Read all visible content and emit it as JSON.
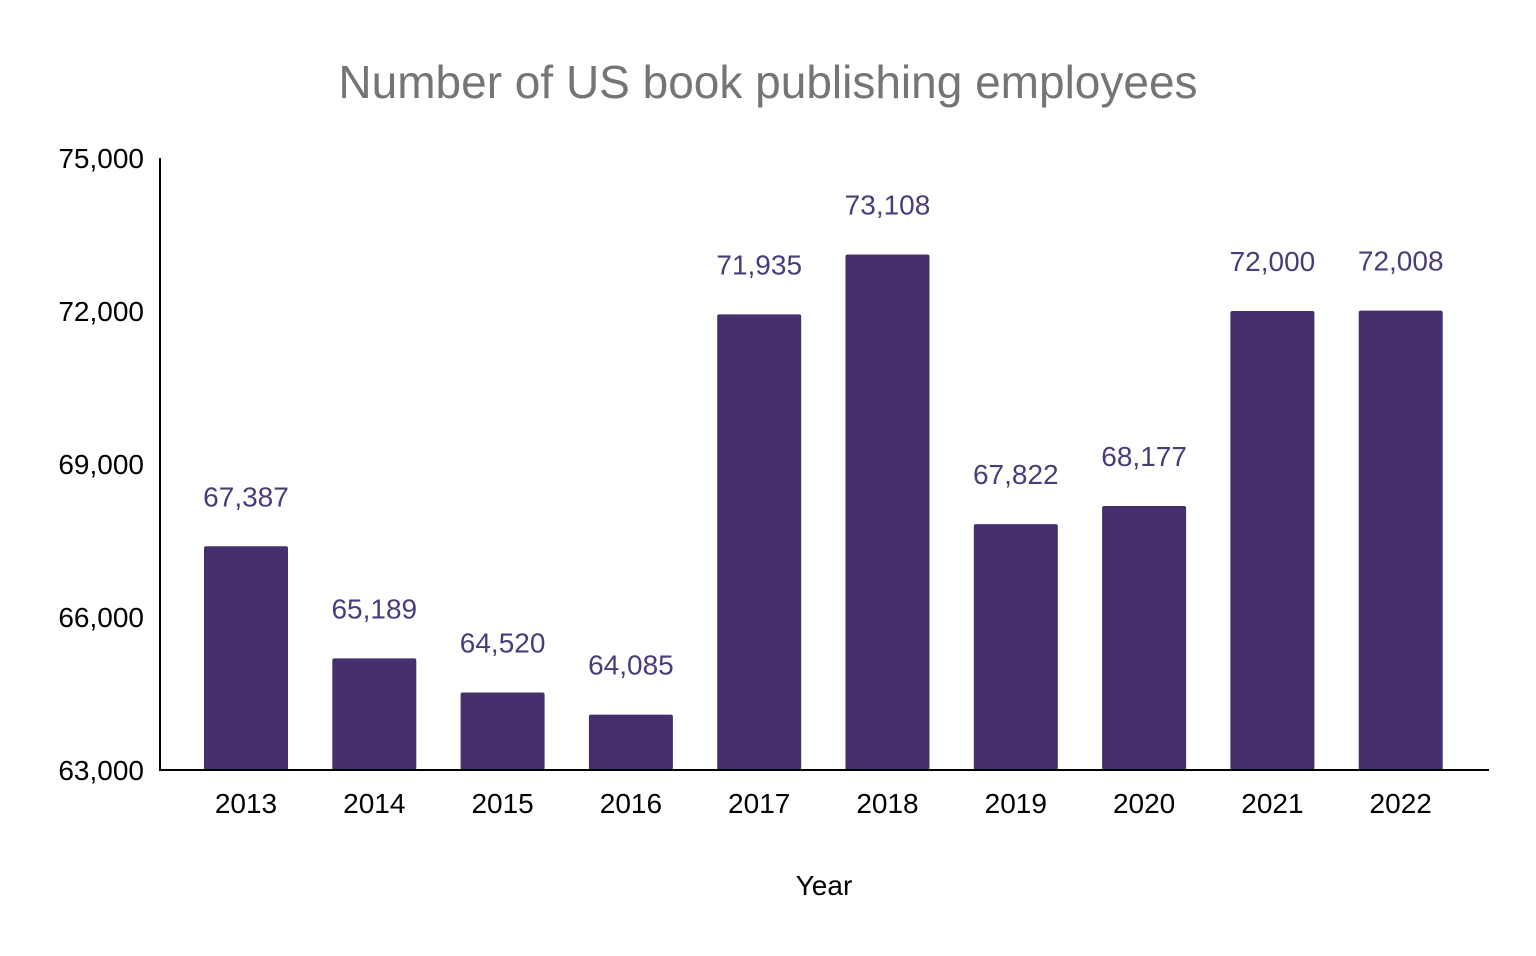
{
  "chart_data": {
    "type": "bar",
    "title": "Number of US book publishing employees",
    "xlabel": "Year",
    "ylabel": "",
    "categories": [
      "2013",
      "2014",
      "2015",
      "2016",
      "2017",
      "2018",
      "2019",
      "2020",
      "2021",
      "2022"
    ],
    "values": [
      67387,
      65189,
      64520,
      64085,
      71935,
      73108,
      67822,
      68177,
      72000,
      72008
    ],
    "data_labels": [
      "67,387",
      "65,189",
      "64,520",
      "64,085",
      "71,935",
      "73,108",
      "67,822",
      "68,177",
      "72,000",
      "72,008"
    ],
    "ylim": [
      63000,
      75000
    ],
    "yticks": [
      63000,
      66000,
      69000,
      72000,
      75000
    ],
    "ytick_labels": [
      "63,000",
      "66,000",
      "69,000",
      "72,000",
      "75,000"
    ],
    "grid": false,
    "legend": "none",
    "colors": {
      "bar": "#45306b",
      "data_label": "#4b3b7a",
      "title": "#757575",
      "axis": "#000000"
    }
  }
}
